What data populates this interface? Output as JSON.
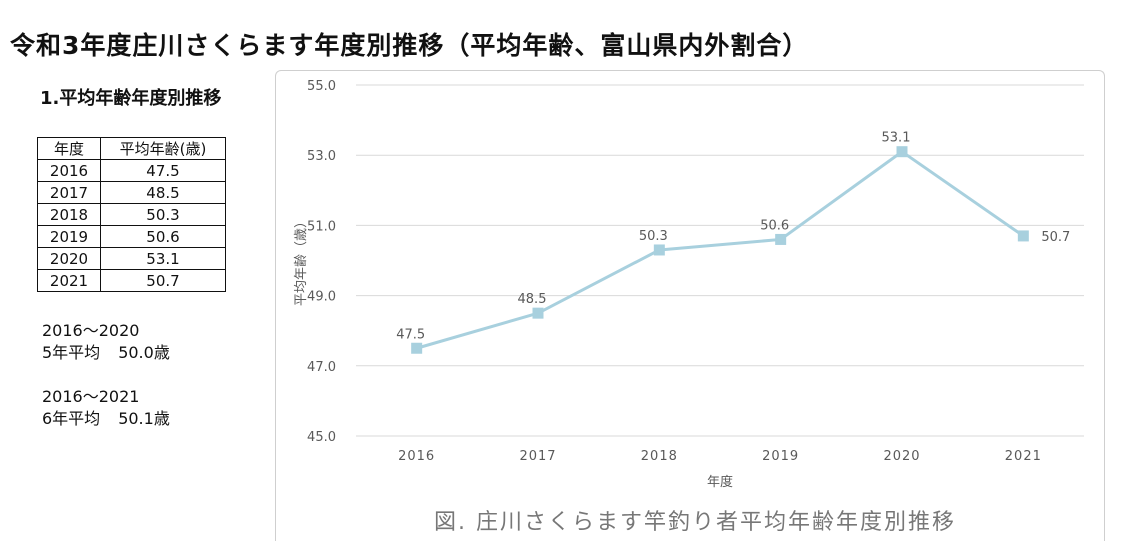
{
  "page": {
    "title": "令和3年度庄川さくらます年度別推移（平均年齢、富山県内外割合）",
    "section_heading": "1.平均年齢年度別推移"
  },
  "table": {
    "headers": [
      "年度",
      "平均年齢(歳)"
    ],
    "rows": [
      [
        "2016",
        "47.5"
      ],
      [
        "2017",
        "48.5"
      ],
      [
        "2018",
        "50.3"
      ],
      [
        "2019",
        "50.6"
      ],
      [
        "2020",
        "53.1"
      ],
      [
        "2021",
        "50.7"
      ]
    ]
  },
  "summary": [
    {
      "period": "2016～2020",
      "label": "5年平均",
      "value": "50.0歳"
    },
    {
      "period": "2016～2021",
      "label": "6年平均",
      "value": "50.1歳"
    }
  ],
  "chart_data": {
    "type": "line",
    "title": "",
    "caption": "図. 庄川さくらます竿釣り者平均年齢年度別推移",
    "xlabel": "年度",
    "ylabel": "平均年齢（歳）",
    "categories": [
      "2016",
      "2017",
      "2018",
      "2019",
      "2020",
      "2021"
    ],
    "series": [
      {
        "values": [
          47.5,
          48.5,
          50.3,
          50.6,
          53.1,
          50.7
        ],
        "labels": [
          "47.5",
          "48.5",
          "50.3",
          "50.6",
          "53.1",
          "50.7"
        ]
      }
    ],
    "ylim": [
      45.0,
      55.0
    ],
    "yticks": [
      "45.0",
      "47.0",
      "49.0",
      "51.0",
      "53.0",
      "55.0"
    ],
    "grid": true,
    "legend": "none",
    "colors": {
      "line": "#a8d0de",
      "marker": "#a8d0de",
      "grid": "#d9d9d9",
      "axis_text": "#595959"
    }
  }
}
